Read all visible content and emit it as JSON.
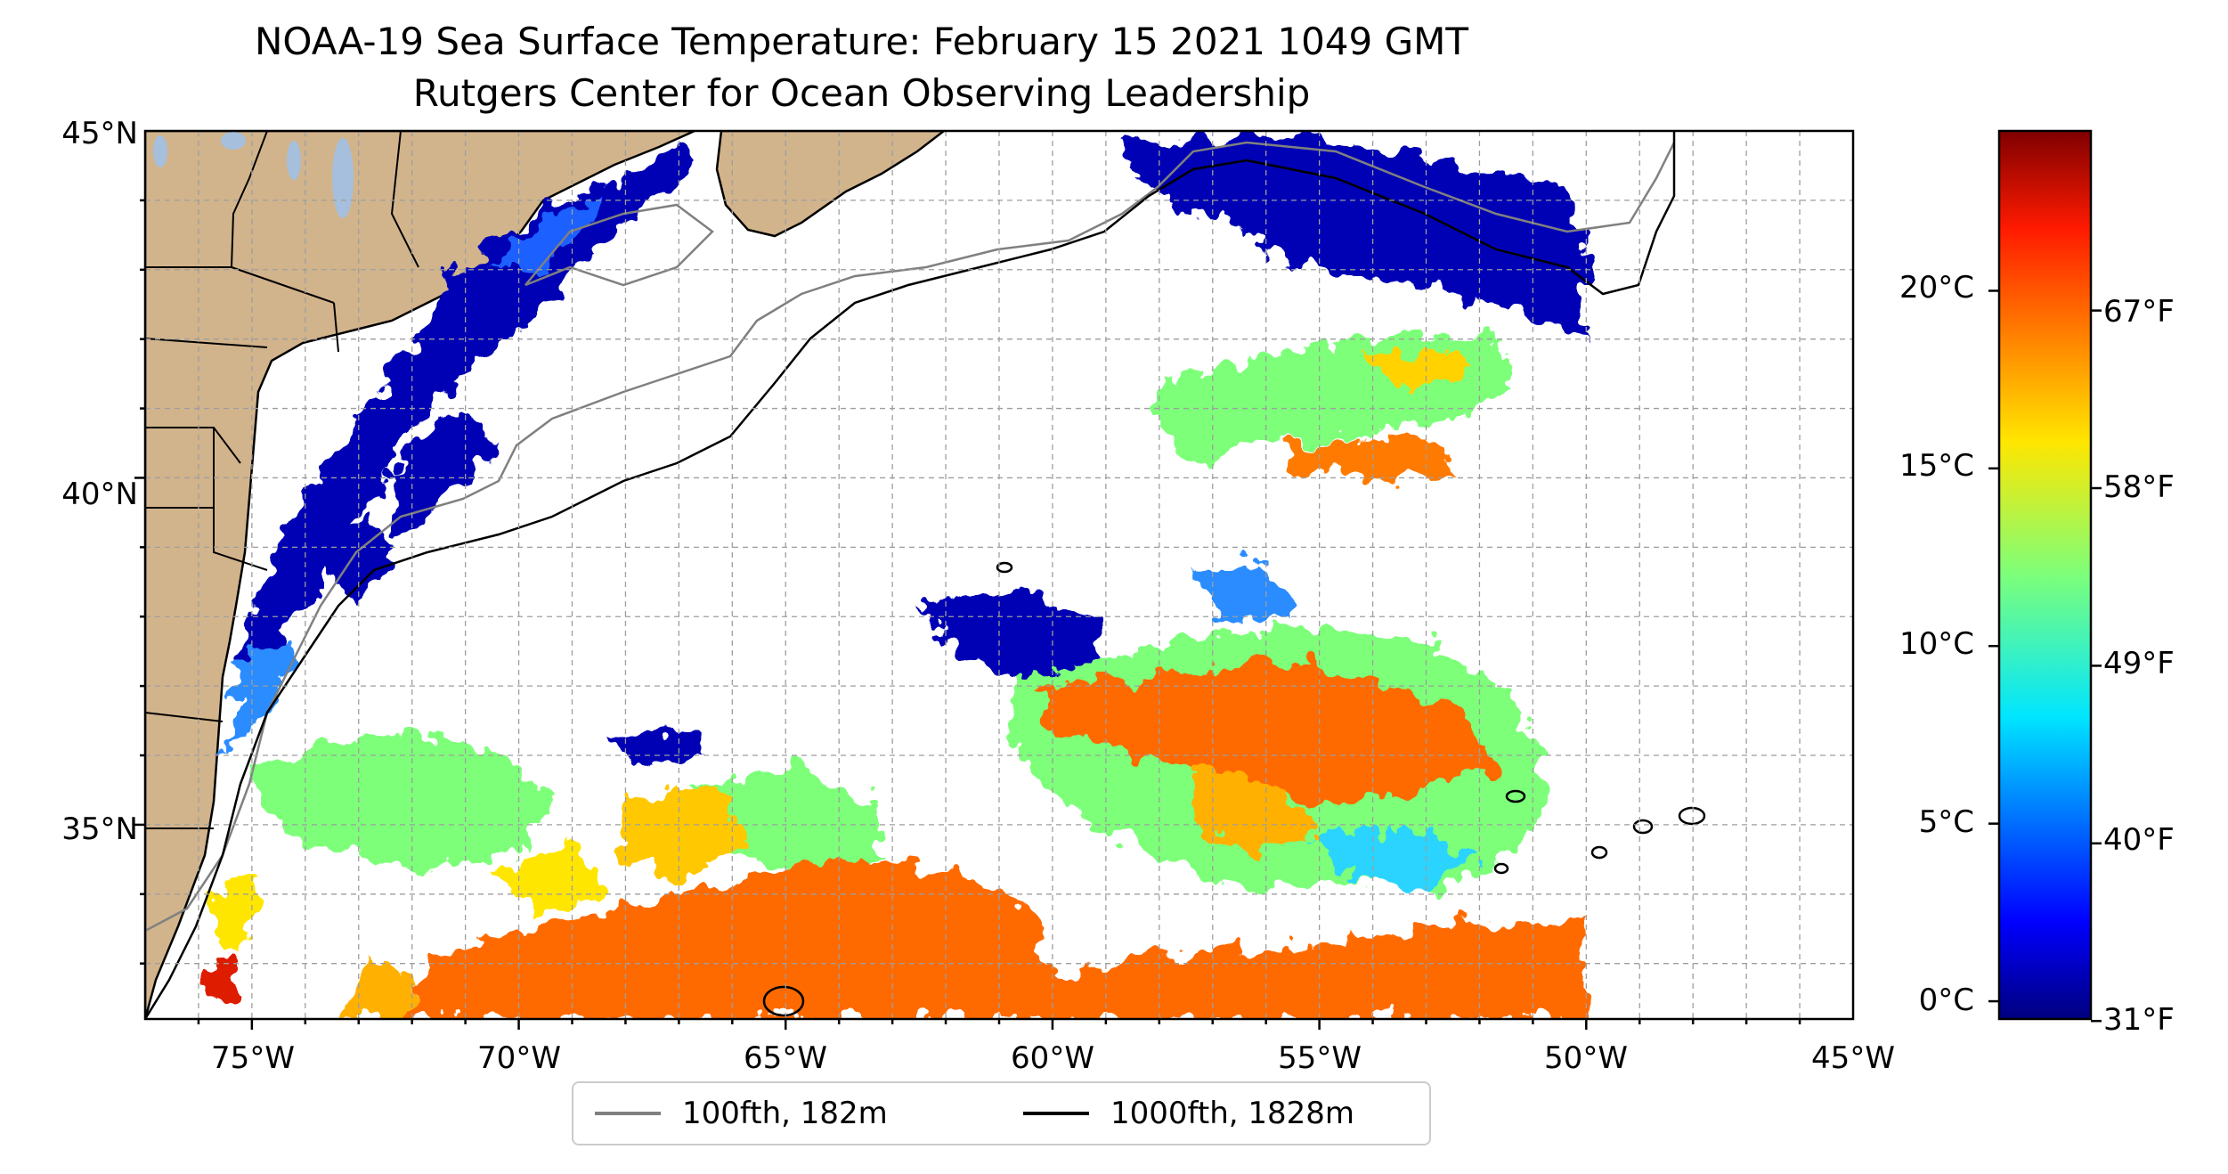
{
  "title": {
    "line1": "NOAA-19 Sea Surface Temperature: February 15 2021 1049 GMT",
    "line2": "Rutgers Center for Ocean Observing Leadership"
  },
  "map": {
    "lat_ticks": [
      "45°N",
      "40°N",
      "35°N"
    ],
    "lon_ticks": [
      "75°W",
      "70°W",
      "65°W",
      "60°W",
      "55°W",
      "50°W",
      "45°W"
    ],
    "extent": {
      "lon_min": -77,
      "lon_max": -45,
      "lat_min": 32.2,
      "lat_max": 45
    },
    "land_color": "#d2b48c",
    "lake_color": "#a5bfdd",
    "grid": "dashed gray, every 1° lat/lon"
  },
  "legend": {
    "items": [
      {
        "label": "100fth, 182m",
        "color": "#808080"
      },
      {
        "label": "1000fth, 1828m",
        "color": "#000000"
      }
    ]
  },
  "colorbar": {
    "colormap": "jet",
    "celsius_ticks": [
      "20°C",
      "15°C",
      "10°C",
      "5°C",
      "0°C"
    ],
    "fahrenheit_ticks": [
      "67°F",
      "58°F",
      "49°F",
      "40°F",
      "31°F"
    ],
    "range_c": [
      -0.5,
      24.5
    ]
  }
}
